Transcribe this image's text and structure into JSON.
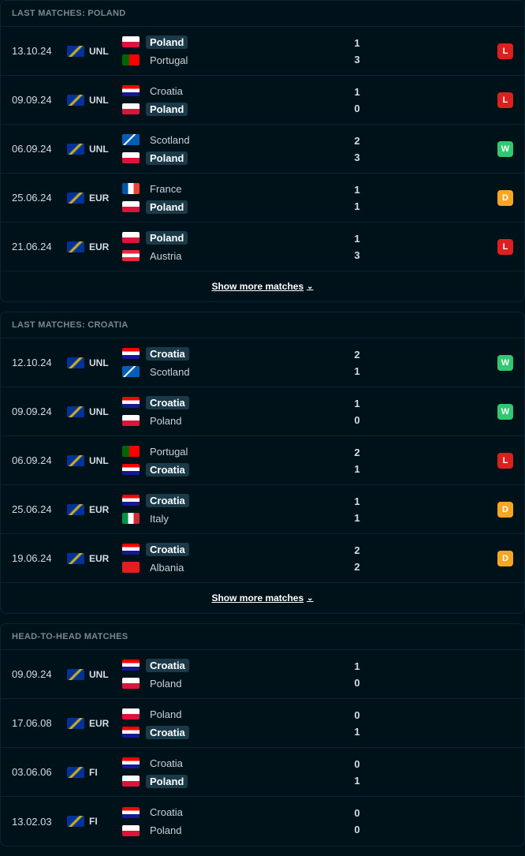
{
  "colors": {
    "loss": "#dc1f1f",
    "win": "#32c771",
    "draw": "#f5a623"
  },
  "flags": {
    "Poland": "linear-gradient(to bottom, #ffffff 50%, #dc143c 50%)",
    "Portugal": "linear-gradient(to right, #006600 40%, #ff0000 40%)",
    "Croatia": "linear-gradient(to bottom, #ff0000 33%, #ffffff 33%, #ffffff 66%, #171796 66%)",
    "Scotland": "linear-gradient(135deg, #005eb8 40%, #ffffff 42%, #ffffff 48%, #005eb8 50%), linear-gradient(45deg, #005eb8 40%, #ffffff 42%, #ffffff 48%, #005eb8 50%)",
    "France": "linear-gradient(to right, #0055a4 33%, #ffffff 33%, #ffffff 66%, #ef4135 66%)",
    "Austria": "linear-gradient(to bottom, #ed2939 33%, #ffffff 33%, #ffffff 66%, #ed2939 66%)",
    "Italy": "linear-gradient(to right, #009246 33%, #ffffff 33%, #ffffff 66%, #ce2b37 66%)",
    "Albania": "#e41e20"
  },
  "showMore": "Show more matches",
  "sections": [
    {
      "title": "LAST MATCHES: POLAND",
      "hasShowMore": true,
      "matches": [
        {
          "date": "13.10.24",
          "comp": "UNL",
          "team1": "Poland",
          "team2": "Portugal",
          "score1": "1",
          "score2": "3",
          "hl1": true,
          "hl2": false,
          "result": "L"
        },
        {
          "date": "09.09.24",
          "comp": "UNL",
          "team1": "Croatia",
          "team2": "Poland",
          "score1": "1",
          "score2": "0",
          "hl1": false,
          "hl2": true,
          "result": "L"
        },
        {
          "date": "06.09.24",
          "comp": "UNL",
          "team1": "Scotland",
          "team2": "Poland",
          "score1": "2",
          "score2": "3",
          "hl1": false,
          "hl2": true,
          "result": "W"
        },
        {
          "date": "25.06.24",
          "comp": "EUR",
          "team1": "France",
          "team2": "Poland",
          "score1": "1",
          "score2": "1",
          "hl1": false,
          "hl2": true,
          "result": "D"
        },
        {
          "date": "21.06.24",
          "comp": "EUR",
          "team1": "Poland",
          "team2": "Austria",
          "score1": "1",
          "score2": "3",
          "hl1": true,
          "hl2": false,
          "result": "L"
        }
      ]
    },
    {
      "title": "LAST MATCHES: CROATIA",
      "hasShowMore": true,
      "matches": [
        {
          "date": "12.10.24",
          "comp": "UNL",
          "team1": "Croatia",
          "team2": "Scotland",
          "score1": "2",
          "score2": "1",
          "hl1": true,
          "hl2": false,
          "result": "W"
        },
        {
          "date": "09.09.24",
          "comp": "UNL",
          "team1": "Croatia",
          "team2": "Poland",
          "score1": "1",
          "score2": "0",
          "hl1": true,
          "hl2": false,
          "result": "W"
        },
        {
          "date": "06.09.24",
          "comp": "UNL",
          "team1": "Portugal",
          "team2": "Croatia",
          "score1": "2",
          "score2": "1",
          "hl1": false,
          "hl2": true,
          "result": "L"
        },
        {
          "date": "25.06.24",
          "comp": "EUR",
          "team1": "Croatia",
          "team2": "Italy",
          "score1": "1",
          "score2": "1",
          "hl1": true,
          "hl2": false,
          "result": "D"
        },
        {
          "date": "19.06.24",
          "comp": "EUR",
          "team1": "Croatia",
          "team2": "Albania",
          "score1": "2",
          "score2": "2",
          "hl1": true,
          "hl2": false,
          "result": "D"
        }
      ]
    },
    {
      "title": "HEAD-TO-HEAD MATCHES",
      "hasShowMore": false,
      "matches": [
        {
          "date": "09.09.24",
          "comp": "UNL",
          "team1": "Croatia",
          "team2": "Poland",
          "score1": "1",
          "score2": "0",
          "hl1": true,
          "hl2": false,
          "result": ""
        },
        {
          "date": "17.06.08",
          "comp": "EUR",
          "team1": "Poland",
          "team2": "Croatia",
          "score1": "0",
          "score2": "1",
          "hl1": false,
          "hl2": true,
          "result": ""
        },
        {
          "date": "03.06.06",
          "comp": "FI",
          "team1": "Croatia",
          "team2": "Poland",
          "score1": "0",
          "score2": "1",
          "hl1": false,
          "hl2": true,
          "result": ""
        },
        {
          "date": "13.02.03",
          "comp": "FI",
          "team1": "Croatia",
          "team2": "Poland",
          "score1": "0",
          "score2": "0",
          "hl1": false,
          "hl2": false,
          "result": ""
        }
      ]
    }
  ]
}
